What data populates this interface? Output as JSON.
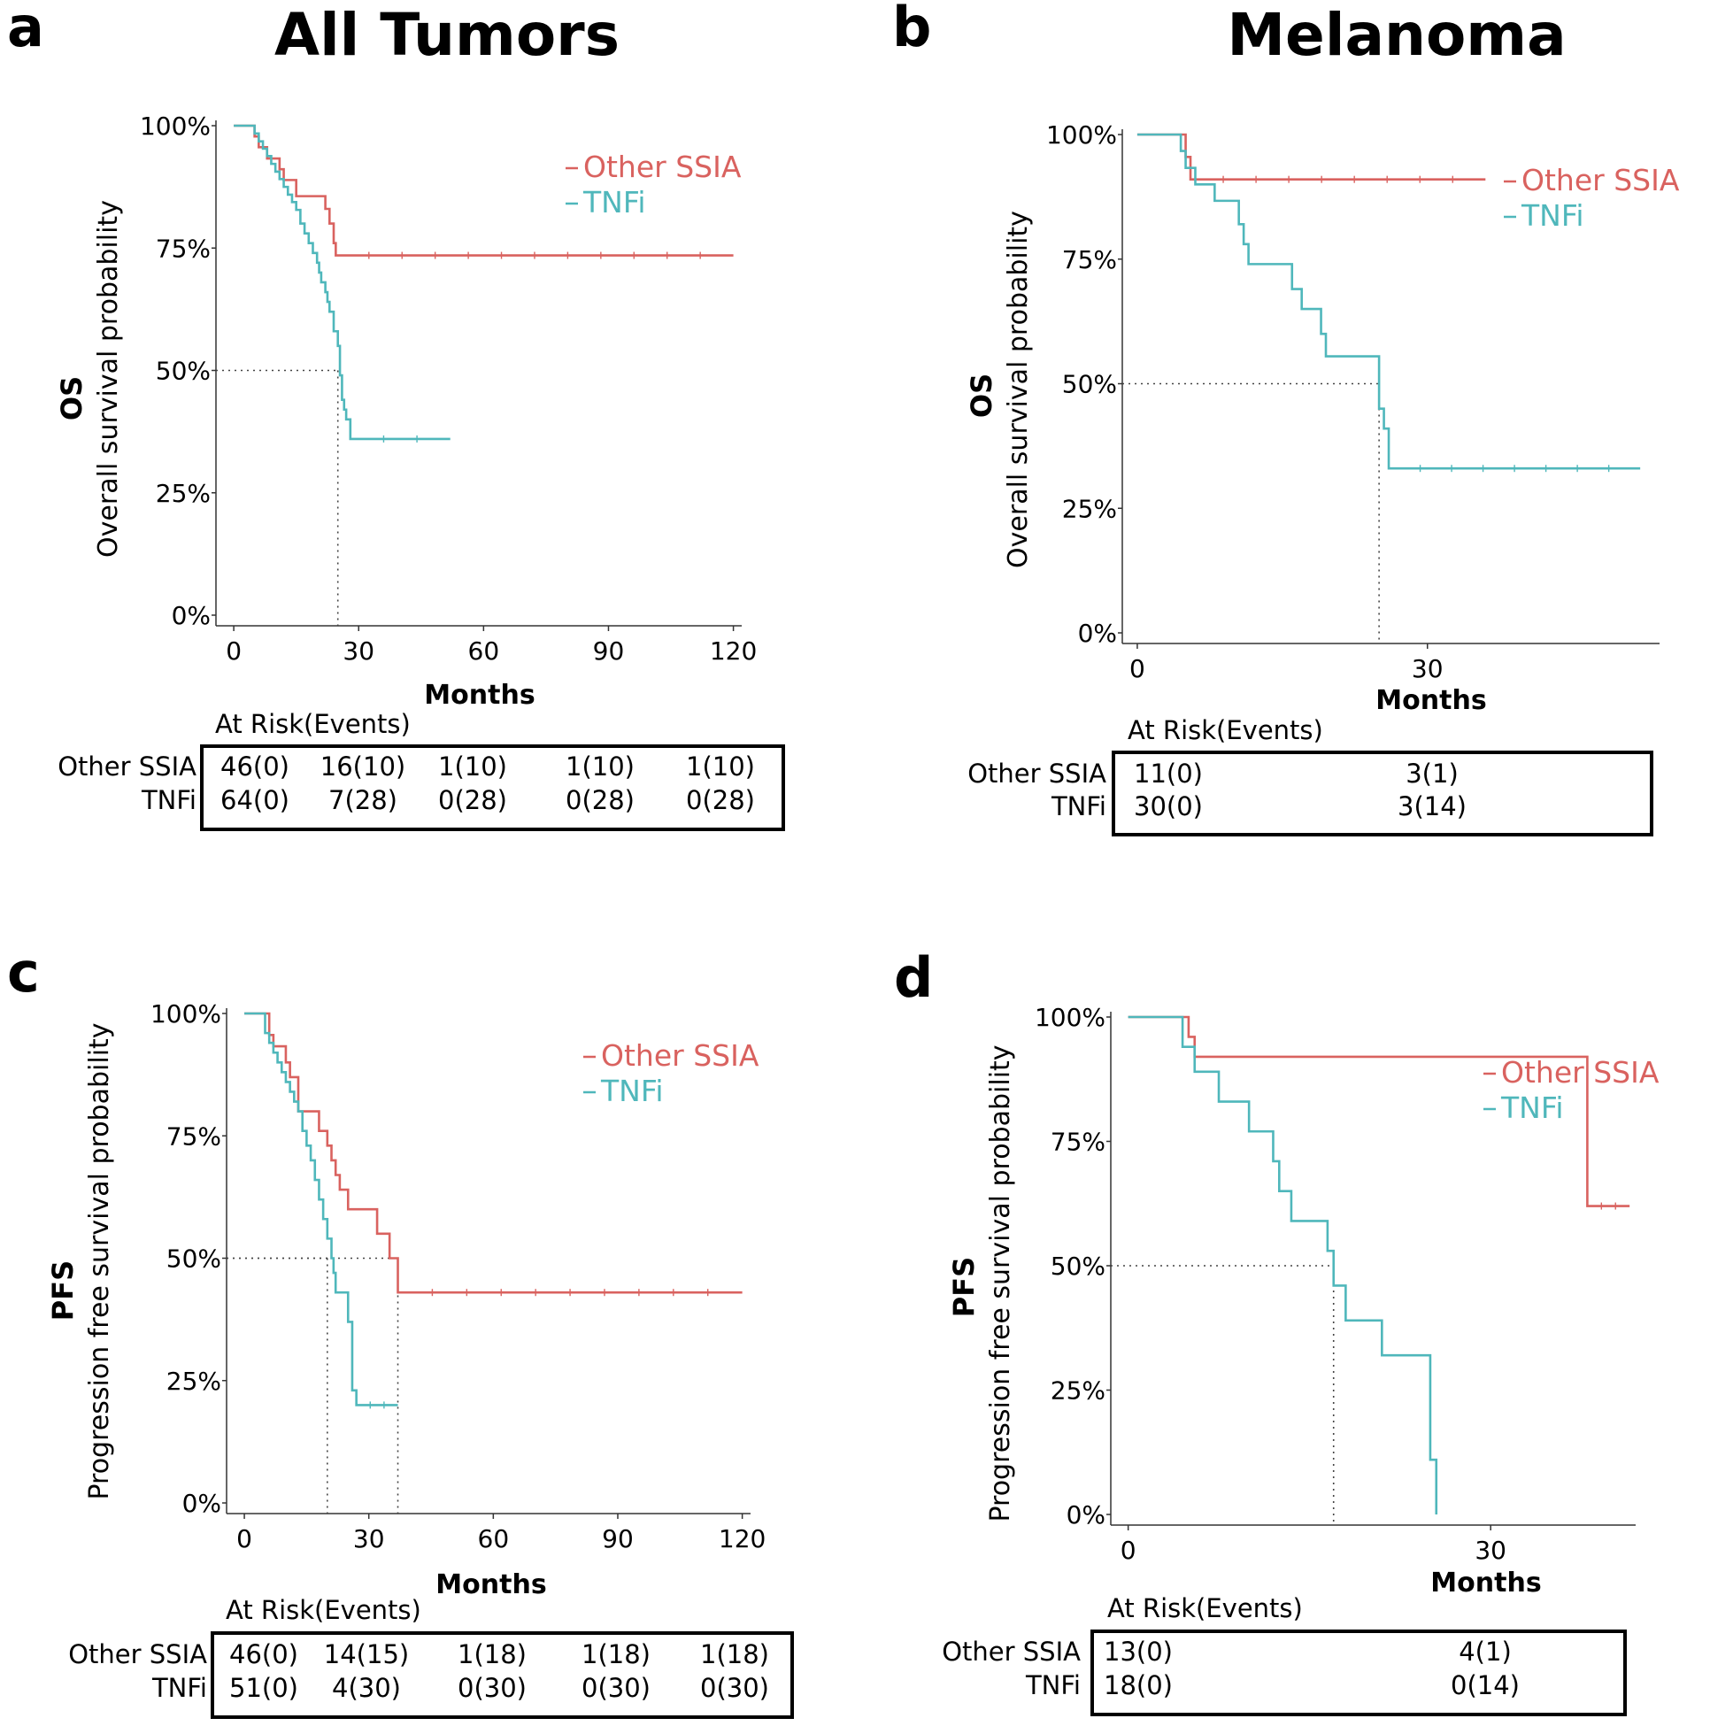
{
  "colors": {
    "other": "#d9625f",
    "tnfi": "#4fb7bb",
    "axis": "#333333",
    "text": "#000000"
  },
  "chart_data": [
    {
      "type": "line",
      "panel": "a",
      "title": "All Tumors",
      "ylabel_bold": "OS",
      "ylabel": "Overall survival probability",
      "xlabel": "Months",
      "xlim": [
        -3,
        122
      ],
      "ylim": [
        0,
        1
      ],
      "xticks": [
        0,
        30,
        60,
        90,
        120
      ],
      "xtick_labels": [
        "0",
        "30",
        "60",
        "90",
        "120"
      ],
      "yticks": [
        0,
        0.25,
        0.5,
        0.75,
        1
      ],
      "ytick_labels": [
        "0%",
        "25%",
        "50%",
        "75%",
        "100%"
      ],
      "legend": [
        "Other SSIA",
        "TNFi"
      ],
      "series": [
        {
          "name": "Other SSIA",
          "color_key": "other",
          "steps": [
            [
              0,
              1
            ],
            [
              5,
              0.978
            ],
            [
              6,
              0.956
            ],
            [
              8,
              0.933
            ],
            [
              11,
              0.911
            ],
            [
              12,
              0.889
            ],
            [
              15,
              0.856
            ],
            [
              22,
              0.83
            ],
            [
              23,
              0.8
            ],
            [
              24,
              0.76
            ],
            [
              24.5,
              0.735
            ],
            [
              120,
              0.735
            ]
          ]
        },
        {
          "name": "TNFi",
          "color_key": "tnfi",
          "steps": [
            [
              0,
              1
            ],
            [
              5,
              0.984
            ],
            [
              6,
              0.968
            ],
            [
              7,
              0.953
            ],
            [
              8,
              0.938
            ],
            [
              9,
              0.922
            ],
            [
              10,
              0.906
            ],
            [
              11,
              0.891
            ],
            [
              12,
              0.875
            ],
            [
              13,
              0.859
            ],
            [
              14,
              0.844
            ],
            [
              15,
              0.828
            ],
            [
              16,
              0.8
            ],
            [
              17,
              0.78
            ],
            [
              18,
              0.76
            ],
            [
              19,
              0.74
            ],
            [
              20,
              0.72
            ],
            [
              20.5,
              0.7
            ],
            [
              21,
              0.68
            ],
            [
              22,
              0.66
            ],
            [
              22.5,
              0.64
            ],
            [
              23,
              0.62
            ],
            [
              24,
              0.58
            ],
            [
              25,
              0.55
            ],
            [
              25.5,
              0.49
            ],
            [
              26,
              0.44
            ],
            [
              26.5,
              0.42
            ],
            [
              27,
              0.4
            ],
            [
              28,
              0.36
            ],
            [
              52,
              0.36
            ]
          ]
        }
      ],
      "median_lines": [
        {
          "x": 25
        }
      ],
      "risk_table": {
        "title": "At Risk(Events)",
        "rows": [
          {
            "label": "Other SSIA",
            "cells": [
              "46(0)",
              "16(10)",
              "1(10)",
              "1(10)",
              "1(10)"
            ]
          },
          {
            "label": "TNFi",
            "cells": [
              "64(0)",
              "7(28)",
              "0(28)",
              "0(28)",
              "0(28)"
            ]
          }
        ]
      }
    },
    {
      "type": "line",
      "panel": "b",
      "title": "Melanoma",
      "ylabel_bold": "OS",
      "ylabel": "Overall survival probability",
      "xlabel": "Months",
      "xlim": [
        -1,
        54
      ],
      "ylim": [
        0,
        1
      ],
      "xticks": [
        0,
        30
      ],
      "xtick_labels": [
        "0",
        "30"
      ],
      "yticks": [
        0,
        0.25,
        0.5,
        0.75,
        1
      ],
      "ytick_labels": [
        "0%",
        "25%",
        "50%",
        "75%",
        "100%"
      ],
      "legend": [
        "Other SSIA",
        "TNFi"
      ],
      "series": [
        {
          "name": "Other SSIA",
          "color_key": "other",
          "steps": [
            [
              0,
              1
            ],
            [
              5,
              0.955
            ],
            [
              5.5,
              0.91
            ],
            [
              36,
              0.91
            ]
          ]
        },
        {
          "name": "TNFi",
          "color_key": "tnfi",
          "steps": [
            [
              0,
              1
            ],
            [
              4.5,
              0.967
            ],
            [
              5,
              0.933
            ],
            [
              6,
              0.9
            ],
            [
              8,
              0.867
            ],
            [
              10.5,
              0.82
            ],
            [
              11,
              0.78
            ],
            [
              11.5,
              0.74
            ],
            [
              16,
              0.69
            ],
            [
              17,
              0.65
            ],
            [
              19,
              0.6
            ],
            [
              19.5,
              0.555
            ],
            [
              25,
              0.45
            ],
            [
              25.5,
              0.41
            ],
            [
              26,
              0.33
            ],
            [
              52,
              0.33
            ]
          ]
        }
      ],
      "median_lines": [
        {
          "x": 25
        }
      ],
      "risk_table": {
        "title": "At Risk(Events)",
        "rows": [
          {
            "label": "Other SSIA",
            "cells": [
              "11(0)",
              "3(1)"
            ]
          },
          {
            "label": "TNFi",
            "cells": [
              "30(0)",
              "3(14)"
            ]
          }
        ]
      }
    },
    {
      "type": "line",
      "panel": "c",
      "title": "",
      "ylabel_bold": "PFS",
      "ylabel": "Progression free survival probability",
      "xlabel": "Months",
      "xlim": [
        -3,
        122
      ],
      "ylim": [
        0,
        1
      ],
      "xticks": [
        0,
        30,
        60,
        90,
        120
      ],
      "xtick_labels": [
        "0",
        "30",
        "60",
        "90",
        "120"
      ],
      "yticks": [
        0,
        0.25,
        0.5,
        0.75,
        1
      ],
      "ytick_labels": [
        "0%",
        "25%",
        "50%",
        "75%",
        "100%"
      ],
      "legend": [
        "Other SSIA",
        "TNFi"
      ],
      "series": [
        {
          "name": "Other SSIA",
          "color_key": "other",
          "steps": [
            [
              0,
              1
            ],
            [
              6,
              0.956
            ],
            [
              7,
              0.933
            ],
            [
              10,
              0.9
            ],
            [
              11,
              0.87
            ],
            [
              13,
              0.8
            ],
            [
              18,
              0.76
            ],
            [
              20,
              0.73
            ],
            [
              21,
              0.7
            ],
            [
              22,
              0.67
            ],
            [
              23,
              0.64
            ],
            [
              25,
              0.6
            ],
            [
              32,
              0.55
            ],
            [
              35,
              0.5
            ],
            [
              37,
              0.43
            ],
            [
              120,
              0.43
            ]
          ]
        },
        {
          "name": "TNFi",
          "color_key": "tnfi",
          "steps": [
            [
              0,
              1
            ],
            [
              5,
              0.96
            ],
            [
              6,
              0.94
            ],
            [
              7,
              0.92
            ],
            [
              8,
              0.9
            ],
            [
              9,
              0.88
            ],
            [
              10,
              0.86
            ],
            [
              11,
              0.84
            ],
            [
              12,
              0.82
            ],
            [
              13,
              0.8
            ],
            [
              14,
              0.76
            ],
            [
              15,
              0.73
            ],
            [
              16,
              0.7
            ],
            [
              17,
              0.66
            ],
            [
              18,
              0.62
            ],
            [
              19,
              0.58
            ],
            [
              20,
              0.54
            ],
            [
              21,
              0.5
            ],
            [
              21.5,
              0.47
            ],
            [
              22,
              0.43
            ],
            [
              25,
              0.37
            ],
            [
              26,
              0.23
            ],
            [
              27,
              0.2
            ],
            [
              37,
              0.2
            ]
          ]
        }
      ],
      "median_lines": [
        {
          "x": 20
        },
        {
          "x": 37
        }
      ],
      "risk_table": {
        "title": "At Risk(Events)",
        "rows": [
          {
            "label": "Other SSIA",
            "cells": [
              "46(0)",
              "14(15)",
              "1(18)",
              "1(18)",
              "1(18)"
            ]
          },
          {
            "label": "TNFi",
            "cells": [
              "51(0)",
              "4(30)",
              "0(30)",
              "0(30)",
              "0(30)"
            ]
          }
        ]
      }
    },
    {
      "type": "line",
      "panel": "d",
      "title": "",
      "ylabel_bold": "PFS",
      "ylabel": "Progression free survival probability",
      "xlabel": "Months",
      "xlim": [
        -1,
        42
      ],
      "ylim": [
        0,
        1
      ],
      "xticks": [
        0,
        30
      ],
      "xtick_labels": [
        "0",
        "30"
      ],
      "yticks": [
        0,
        0.25,
        0.5,
        0.75,
        1
      ],
      "ytick_labels": [
        "0%",
        "25%",
        "50%",
        "75%",
        "100%"
      ],
      "legend": [
        "Other SSIA",
        "TNFi"
      ],
      "series": [
        {
          "name": "Other SSIA",
          "color_key": "other",
          "steps": [
            [
              0,
              1
            ],
            [
              5,
              0.96
            ],
            [
              5.5,
              0.92
            ],
            [
              38,
              0.92
            ],
            [
              38,
              0.77
            ],
            [
              38,
              0.62
            ],
            [
              41.5,
              0.62
            ]
          ]
        },
        {
          "name": "TNFi",
          "color_key": "tnfi",
          "steps": [
            [
              0,
              1
            ],
            [
              4.5,
              0.94
            ],
            [
              5.5,
              0.89
            ],
            [
              7.5,
              0.83
            ],
            [
              10,
              0.77
            ],
            [
              12,
              0.71
            ],
            [
              12.5,
              0.65
            ],
            [
              13.5,
              0.59
            ],
            [
              16.5,
              0.53
            ],
            [
              17,
              0.46
            ],
            [
              18,
              0.39
            ],
            [
              21,
              0.32
            ],
            [
              25,
              0.11
            ],
            [
              25.5,
              0.0
            ]
          ]
        }
      ],
      "median_lines": [
        {
          "x": 17
        }
      ],
      "risk_table": {
        "title": "At Risk(Events)",
        "rows": [
          {
            "label": "Other SSIA",
            "cells": [
              "13(0)",
              "4(1)"
            ]
          },
          {
            "label": "TNFi",
            "cells": [
              "18(0)",
              "0(14)"
            ]
          }
        ]
      }
    }
  ]
}
